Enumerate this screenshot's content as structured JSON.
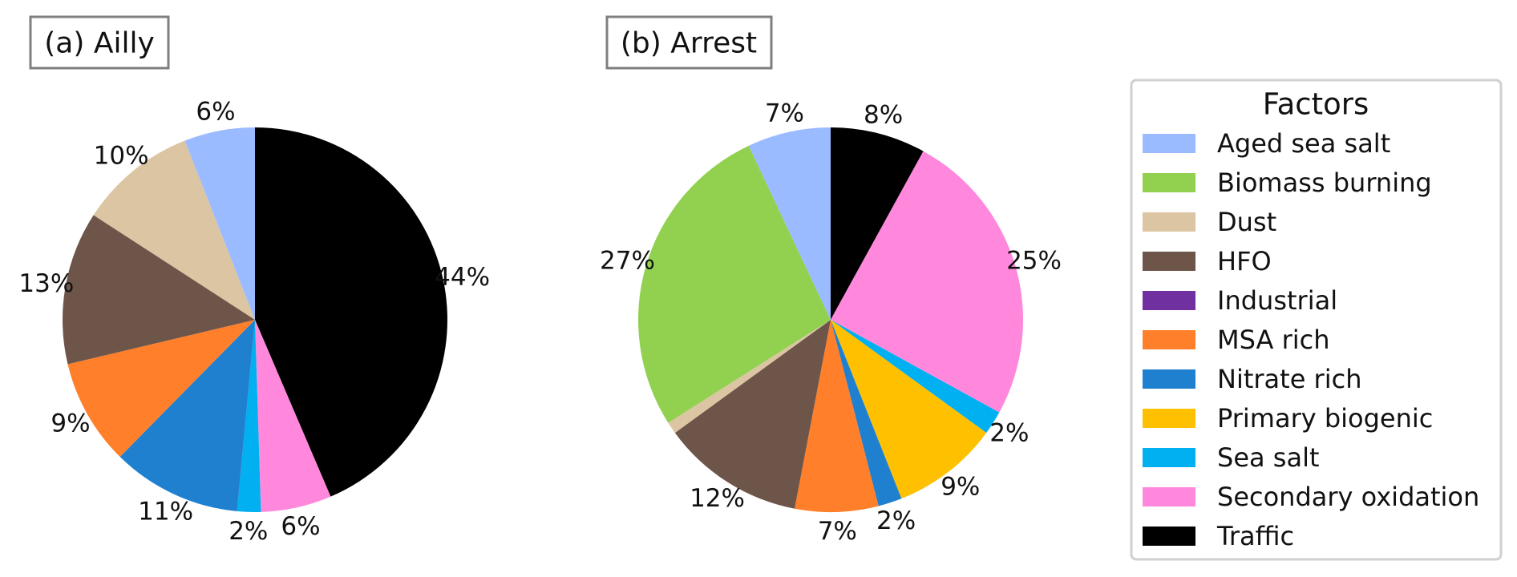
{
  "colors": {
    "Aged sea salt": "#9abbff",
    "Biomass burning": "#92d050",
    "Dust": "#dcc5a2",
    "HFO": "#6e5549",
    "Industrial": "#7030a0",
    "MSA rich": "#ff7f2a",
    "Nitrate rich": "#2080d0",
    "Primary biogenic": "#ffc000",
    "Sea salt": "#00b0f0",
    "Secondary oxidation": "#ff88dd",
    "Traffic": "#000000"
  },
  "legend": {
    "title": "Factors",
    "items": [
      "Aged sea salt",
      "Biomass burning",
      "Dust",
      "HFO",
      "Industrial",
      "MSA rich",
      "Nitrate rich",
      "Primary biogenic",
      "Sea salt",
      "Secondary oxidation",
      "Traffic"
    ]
  },
  "chart_data": [
    {
      "type": "pie",
      "title": "(a) Ailly",
      "slices": [
        {
          "name": "Traffic",
          "value": 44,
          "label": "44%"
        },
        {
          "name": "Secondary oxidation",
          "value": 6,
          "label": "6%"
        },
        {
          "name": "Sea salt",
          "value": 2,
          "label": "2%"
        },
        {
          "name": "Nitrate rich",
          "value": 11,
          "label": "11%"
        },
        {
          "name": "MSA rich",
          "value": 9,
          "label": "9%"
        },
        {
          "name": "HFO",
          "value": 13,
          "label": "13%"
        },
        {
          "name": "Dust",
          "value": 10,
          "label": "10%"
        },
        {
          "name": "Aged sea salt",
          "value": 6,
          "label": "6%"
        }
      ]
    },
    {
      "type": "pie",
      "title": "(b) Arrest",
      "slices": [
        {
          "name": "Traffic",
          "value": 8,
          "label": "8%"
        },
        {
          "name": "Secondary oxidation",
          "value": 25,
          "label": "25%"
        },
        {
          "name": "Sea salt",
          "value": 2,
          "label": "2%"
        },
        {
          "name": "Primary biogenic",
          "value": 9,
          "label": "9%"
        },
        {
          "name": "Nitrate rich",
          "value": 2,
          "label": "2%"
        },
        {
          "name": "MSA rich",
          "value": 7,
          "label": "7%"
        },
        {
          "name": "HFO",
          "value": 12,
          "label": "12%"
        },
        {
          "name": "Dust",
          "value": 1,
          "label": ""
        },
        {
          "name": "Biomass burning",
          "value": 27,
          "label": "27%"
        },
        {
          "name": "Aged sea salt",
          "value": 7,
          "label": "7%"
        }
      ]
    }
  ]
}
